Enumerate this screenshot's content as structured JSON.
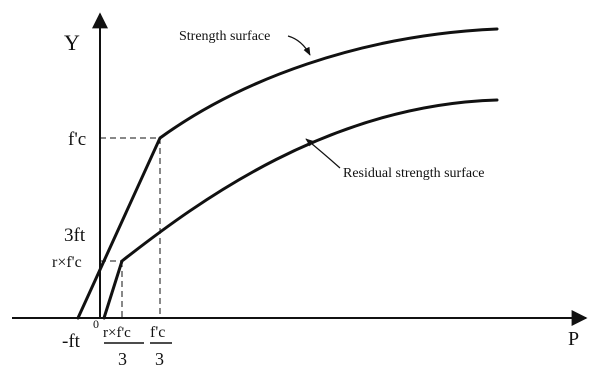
{
  "axes": {
    "y_label": "Y",
    "x_label": "P",
    "origin_label": "0"
  },
  "y_ticks": {
    "fc": "f'c",
    "three_ft": "3ft",
    "r_fc": "r×f'c"
  },
  "x_ticks": {
    "minus_ft": "-ft",
    "r_fc_over_3_num": "r×f'c",
    "r_fc_over_3_den": "3",
    "fc_over_3_num": "f'c",
    "fc_over_3_den": "3"
  },
  "curves": {
    "strength": "Strength surface",
    "residual": "Residual strength surface"
  }
}
